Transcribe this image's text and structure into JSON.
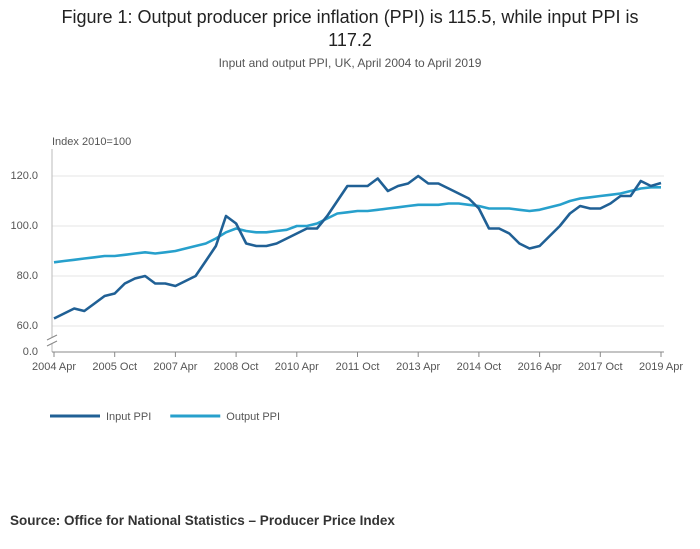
{
  "chart_data": {
    "type": "line",
    "title": "Figure 1: Output producer price inflation (PPI) is 115.5, while input PPI is 117.2",
    "subtitle": "Input and output PPI, UK, April 2004 to April 2019",
    "y_label": "Index 2010=100",
    "source": "Source: Office for National Statistics – Producer Price Index",
    "categories": [
      "2004 Apr",
      null,
      null,
      null,
      null,
      null,
      "2005 Oct",
      null,
      null,
      null,
      null,
      null,
      "2007 Apr",
      null,
      null,
      null,
      null,
      null,
      "2008 Oct",
      null,
      null,
      null,
      null,
      null,
      "2010 Apr",
      null,
      null,
      null,
      null,
      null,
      "2011 Oct",
      null,
      null,
      null,
      null,
      null,
      "2013 Apr",
      null,
      null,
      null,
      null,
      null,
      "2014 Oct",
      null,
      null,
      null,
      null,
      null,
      "2016 Apr",
      null,
      null,
      null,
      null,
      null,
      "2017 Oct",
      null,
      null,
      null,
      null,
      null,
      "2019 Apr"
    ],
    "series": [
      {
        "name": "Input PPI",
        "color": "#206095",
        "values": [
          63,
          65,
          67,
          66,
          69,
          72,
          73,
          77,
          79,
          80,
          77,
          77,
          76,
          78,
          80,
          86,
          92,
          104,
          101,
          93,
          92,
          92,
          93,
          95,
          97,
          99,
          99,
          104,
          110,
          116,
          116,
          116,
          119,
          114,
          116,
          117,
          120,
          117,
          117,
          115,
          113,
          111,
          107,
          99,
          99,
          97,
          93,
          91,
          92,
          96,
          100,
          105,
          108,
          107,
          107,
          109,
          112,
          112,
          118,
          116,
          117.2
        ]
      },
      {
        "name": "Output PPI",
        "color": "#27a0cc",
        "values": [
          85.5,
          86,
          86.5,
          87,
          87.5,
          88,
          88,
          88.5,
          89,
          89.5,
          89,
          89.5,
          90,
          91,
          92,
          93,
          95,
          97.5,
          99,
          98,
          97.5,
          97.5,
          98,
          98.5,
          100,
          100,
          101,
          103,
          105,
          105.5,
          106,
          106,
          106.5,
          107,
          107.5,
          108,
          108.5,
          108.5,
          108.5,
          109,
          109,
          108.5,
          108,
          107,
          107,
          107,
          106.5,
          106,
          106.5,
          107.5,
          108.5,
          110,
          111,
          111.5,
          112,
          112.5,
          113,
          114,
          115,
          115.5,
          115.5
        ]
      }
    ],
    "ylim": [
      0,
      130
    ],
    "yticks": [
      {
        "value": 0,
        "label": "0.0"
      },
      {
        "value": 60,
        "label": "60.0"
      },
      {
        "value": 80,
        "label": "80.0"
      },
      {
        "value": 100,
        "label": "100.0"
      },
      {
        "value": 120,
        "label": "120.0"
      }
    ],
    "grid": true,
    "legend": "bottom-left"
  }
}
